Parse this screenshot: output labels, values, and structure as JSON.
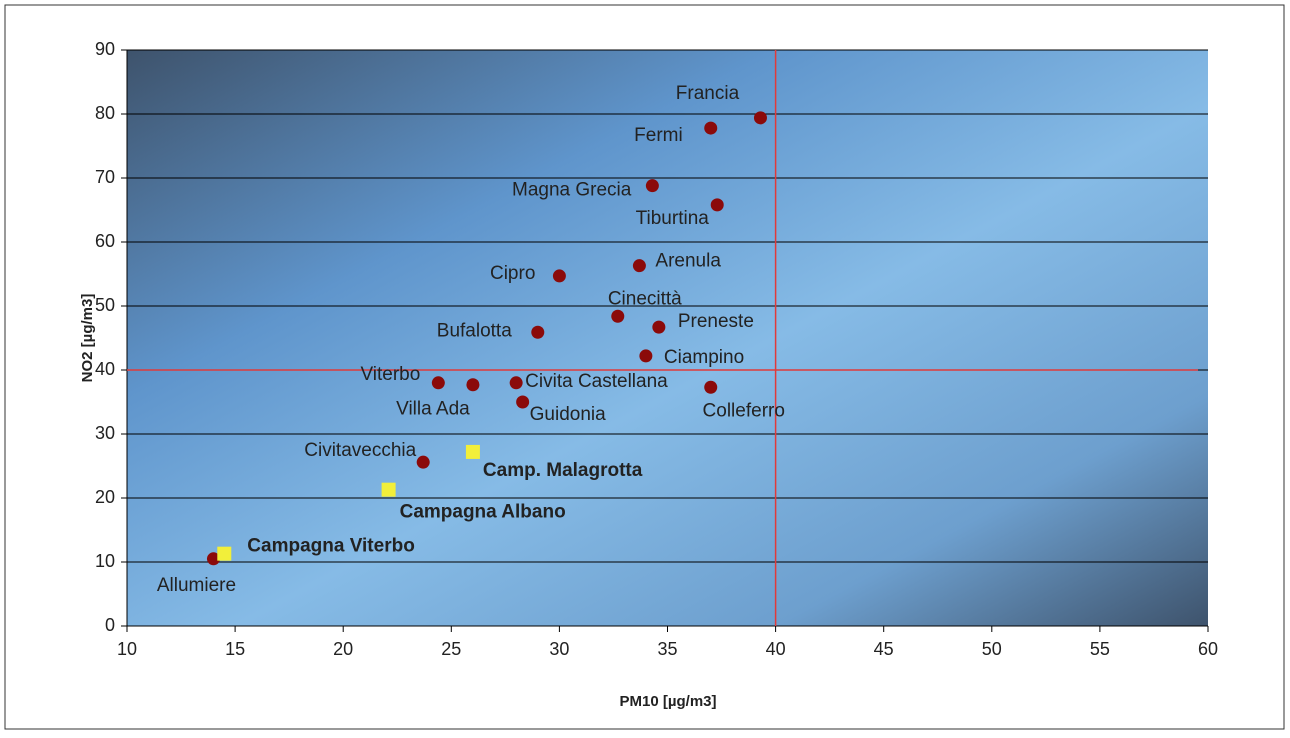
{
  "chart_data": {
    "type": "scatter",
    "x_label": "PM10 [µg/m3]",
    "y_label": "NO2 [µg/m3]",
    "xlim": [
      10,
      60
    ],
    "xticks": [
      10,
      15,
      20,
      25,
      30,
      35,
      40,
      45,
      50,
      55,
      60
    ],
    "ylim": [
      0,
      90
    ],
    "yticks": [
      0,
      10,
      20,
      30,
      40,
      50,
      60,
      70,
      80,
      90
    ],
    "grid": true,
    "reference_lines": {
      "x": 40,
      "y": 40,
      "color": "#e03a3a"
    },
    "series": [
      {
        "color": "#8b0a0a",
        "marker": "circle",
        "labels": [
          "Francia",
          "Fermi",
          "Magna Grecia",
          "Tiburtina",
          "Arenula",
          "Cipro",
          "Cinecittà",
          "Preneste",
          "Bufalotta",
          "Ciampino",
          "Viterbo",
          "Villa Ada",
          "Civita Castellana",
          "Colleferro",
          "Guidonia",
          "Civitavecchia",
          "Allumiere"
        ],
        "x": [
          39.3,
          37.0,
          34.3,
          37.3,
          33.7,
          30.0,
          32.7,
          34.6,
          29.0,
          34.0,
          24.4,
          26.0,
          28.0,
          37.0,
          28.3,
          23.7,
          14.0
        ],
        "values": [
          79.4,
          77.8,
          68.8,
          65.8,
          56.3,
          54.7,
          48.4,
          46.7,
          45.9,
          42.2,
          38.0,
          37.7,
          38.0,
          37.3,
          35.0,
          25.6,
          10.5
        ]
      },
      {
        "color": "#f2ef3a",
        "marker": "square",
        "labels": [
          "Camp. Malagrotta",
          "Campagna Albano",
          "Campagna Viterbo"
        ],
        "x": [
          26.0,
          22.1,
          14.5
        ],
        "values": [
          27.2,
          21.3,
          11.3
        ]
      }
    ]
  }
}
